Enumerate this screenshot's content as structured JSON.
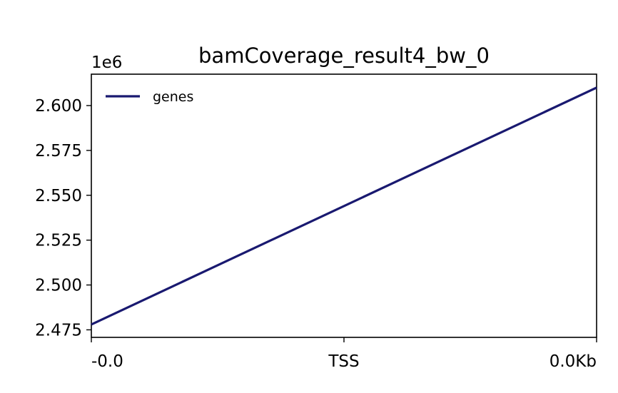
{
  "chart_data": {
    "type": "line",
    "title": "bamCoverage_result4_bw_0",
    "xlabel": "",
    "ylabel": "",
    "y_offset_label": "1e6",
    "x_tick_labels": [
      "-0.0",
      "TSS",
      "0.0Kb"
    ],
    "x_tick_positions": [
      0,
      0.5,
      1
    ],
    "xlim": [
      0,
      1
    ],
    "ylim": [
      2.4708,
      2.6175
    ],
    "y_ticks": [
      2.475,
      2.5,
      2.525,
      2.55,
      2.575,
      2.6
    ],
    "y_tick_labels": [
      "2.475",
      "2.500",
      "2.525",
      "2.550",
      "2.575",
      "2.600"
    ],
    "grid": false,
    "legend_position": "top-left",
    "series": [
      {
        "name": "genes",
        "color": "#191970",
        "x": [
          0,
          1
        ],
        "values": [
          2.478,
          2.61
        ]
      }
    ]
  }
}
